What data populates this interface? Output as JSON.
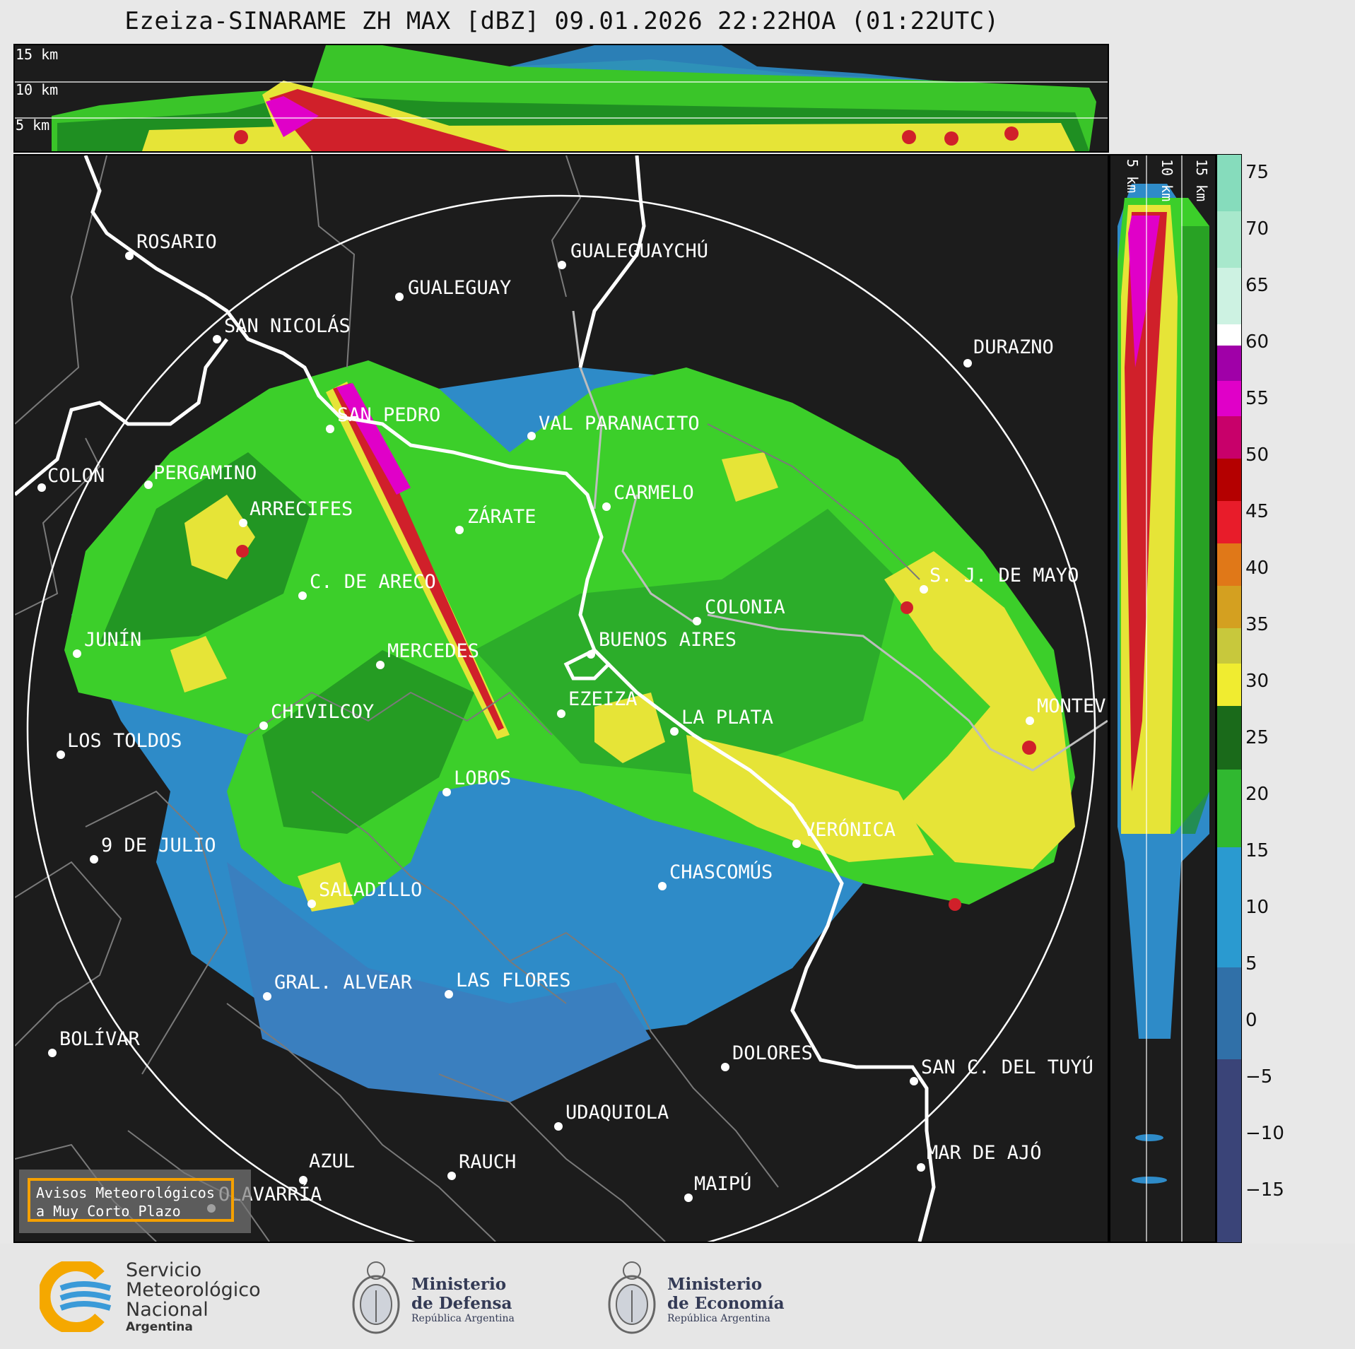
{
  "title": "Ezeiza-SINARAME ZH MAX [dBZ] 09.01.2026 22:22HOA (01:22UTC)",
  "top_panel": {
    "height_labels": [
      "15 km",
      "10 km",
      "5 km"
    ]
  },
  "side_panel": {
    "height_labels": [
      "5 km",
      "10 km",
      "15 km"
    ]
  },
  "map": {
    "cities": [
      {
        "name": "ROSARIO"
      },
      {
        "name": "GUALEGUAYCHÚ"
      },
      {
        "name": "GUALEGUAY"
      },
      {
        "name": "SAN NICOLÁS"
      },
      {
        "name": "DURAZNO"
      },
      {
        "name": "SAN PEDRO"
      },
      {
        "name": "VAL PARANACITO"
      },
      {
        "name": "COLON"
      },
      {
        "name": "PERGAMINO"
      },
      {
        "name": "CARMELO"
      },
      {
        "name": "ARRECIFES"
      },
      {
        "name": "ZÁRATE"
      },
      {
        "name": "S. J. DE MAYO"
      },
      {
        "name": "C. DE ARECO"
      },
      {
        "name": "COLONIA"
      },
      {
        "name": "JUNÍN"
      },
      {
        "name": "BUENOS AIRES"
      },
      {
        "name": "MERCEDES"
      },
      {
        "name": "MONTEVIDEO"
      },
      {
        "name": "EZEIZA"
      },
      {
        "name": "CHIVILCOY"
      },
      {
        "name": "LA PLATA"
      },
      {
        "name": "LOS TOLDOS"
      },
      {
        "name": "LOBOS"
      },
      {
        "name": "VERÓNICA"
      },
      {
        "name": "9 DE JULIO"
      },
      {
        "name": "CHASCOMÚS"
      },
      {
        "name": "SALADILLO"
      },
      {
        "name": "GRAL. ALVEAR"
      },
      {
        "name": "LAS FLORES"
      },
      {
        "name": "BOLÍVAR"
      },
      {
        "name": "DOLORES"
      },
      {
        "name": "SAN C. DEL TUYÚ"
      },
      {
        "name": "UDAQUIOLA"
      },
      {
        "name": "AZUL"
      },
      {
        "name": "RAUCH"
      },
      {
        "name": "MAR DE AJÓ"
      },
      {
        "name": "OLAVARRÍA"
      },
      {
        "name": "MAIPÚ"
      }
    ],
    "warning_box": {
      "line1": "Avisos Meteorológicos",
      "line2": "a Muy Corto Plazo",
      "border_color": "#f5a000"
    }
  },
  "colorbar": {
    "unit": "dBZ",
    "range": [
      -20,
      77
    ],
    "ticks": [
      "75",
      "70",
      "65",
      "60",
      "55",
      "50",
      "45",
      "40",
      "35",
      "30",
      "25",
      "20",
      "15",
      "10",
      "5",
      "0",
      "−5",
      "−10",
      "−15"
    ]
  },
  "footer": {
    "smn": {
      "line1": "Servicio",
      "line2": "Meteorológico",
      "line3": "Nacional",
      "line4": "Argentina"
    },
    "defensa": {
      "line1": "Ministerio",
      "line2": "de Defensa",
      "line3": "República Argentina"
    },
    "economia": {
      "line1": "Ministerio",
      "line2": "de Economía",
      "line3": "República Argentina"
    }
  },
  "colors": {
    "background_dark": "#1c1c1c",
    "weak_echo_blue": "#2e8bc8",
    "green": "#3ccf2a",
    "yellow": "#e6e437",
    "red": "#d0202a",
    "magenta": "#e000c8"
  }
}
